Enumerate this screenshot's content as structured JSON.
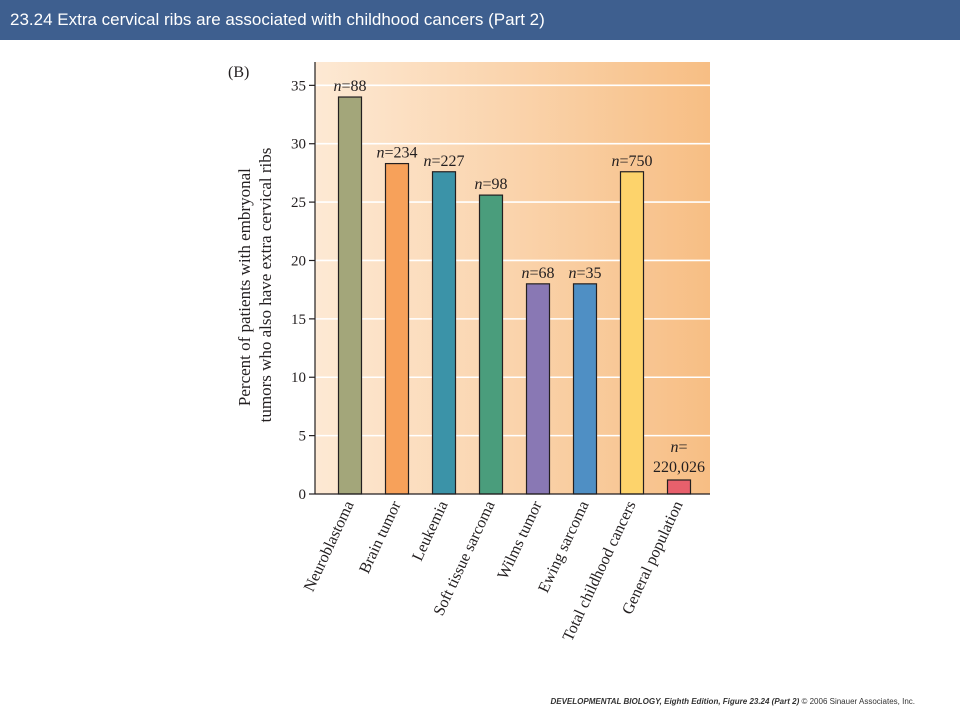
{
  "slide": {
    "title": "23.24 Extra cervical ribs are associated with childhood cancers (Part 2)"
  },
  "footer": {
    "book": "DEVELOPMENTAL BIOLOGY, Eighth Edition, Figure 23.24 (Part 2)",
    "copyright": "© 2006 Sinauer Associates, Inc."
  },
  "chart_data": {
    "type": "bar",
    "panel_label": "(B)",
    "title": "",
    "xlabel": "",
    "ylabel": "Percent of patients with embryonal tumors who also have extra cervical ribs",
    "ylabel_lines": [
      "Percent of patients with embryonal",
      "tumors who also have extra cervical ribs"
    ],
    "ylim": [
      0,
      37
    ],
    "yticks": [
      0,
      5,
      10,
      15,
      20,
      25,
      30,
      35
    ],
    "grid": true,
    "categories": [
      "Neuroblastoma",
      "Brain tumor",
      "Leukemia",
      "Soft tissue sarcoma",
      "Wilms tumor",
      "Ewing sarcoma",
      "Total childhood cancers",
      "General population"
    ],
    "values": [
      34.0,
      28.3,
      27.6,
      25.6,
      18.0,
      18.0,
      27.6,
      1.2
    ],
    "n_prefix": "n",
    "n_labels": [
      "=88",
      "=234",
      "=227",
      "=98",
      "=68",
      "=35",
      "=750",
      "=\n220,026"
    ],
    "bar_colors": [
      "#a3a67a",
      "#f7a15a",
      "#3b93a8",
      "#4a9d7c",
      "#8978b4",
      "#4f8fc4",
      "#fdd36b",
      "#e8606c"
    ],
    "background_gradient": [
      "#fde9d4",
      "#f7be84"
    ]
  }
}
